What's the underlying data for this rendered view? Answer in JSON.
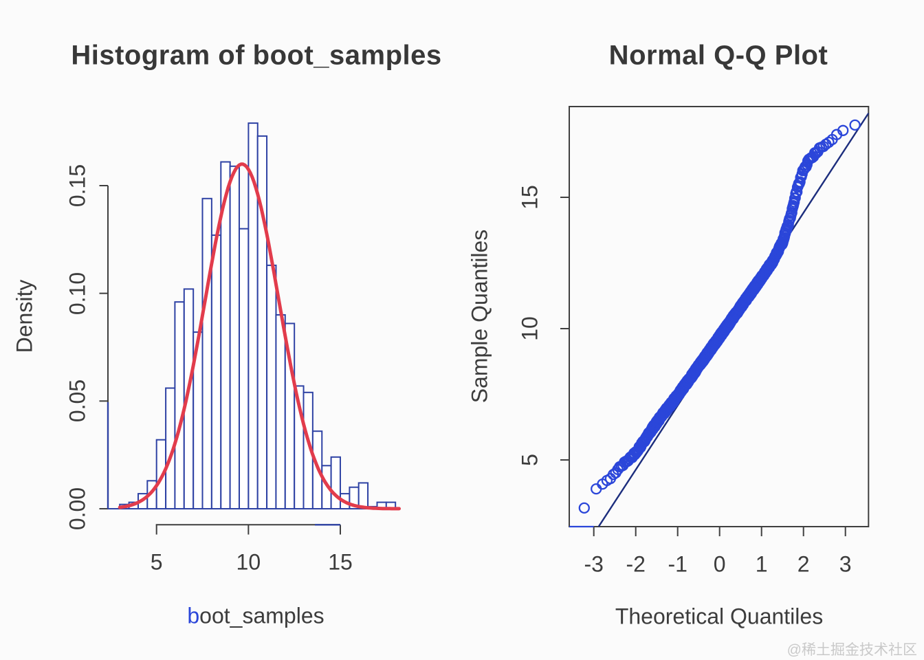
{
  "page": {
    "background": "#fbfbfb",
    "watermark": "@稀土掘金技术社区",
    "text_color": "#3a3a3a",
    "axis_color": "#3f3f3f"
  },
  "chart_data": [
    {
      "type": "bar",
      "subtype": "histogram-with-normal-curve",
      "title": "Histogram of boot_samples",
      "xlabel": "boot_samples",
      "xlabel_first": "b",
      "xlabel_rest": "oot_samples",
      "xlabel_first_color": "#2b46d9",
      "ylabel": "Density",
      "bin_start": 3.0,
      "bin_width": 0.5,
      "densities": [
        0.002,
        0.003,
        0.007,
        0.013,
        0.032,
        0.056,
        0.096,
        0.102,
        0.082,
        0.144,
        0.127,
        0.161,
        0.159,
        0.13,
        0.179,
        0.173,
        0.113,
        0.09,
        0.086,
        0.057,
        0.054,
        0.036,
        0.02,
        0.024,
        0.007,
        0.01,
        0.012,
        0.001,
        0.003,
        0.003
      ],
      "x_tick_values": [
        5,
        10,
        15
      ],
      "x_tick_labels": [
        "5",
        "10",
        "15"
      ],
      "y_tick_values": [
        0,
        0.05,
        0.1,
        0.15
      ],
      "y_tick_labels": [
        "0.00",
        "0.05",
        "0.10",
        "0.15"
      ],
      "xlim": [
        2.4,
        18.4
      ],
      "ylim": [
        0,
        0.187
      ],
      "grid": false,
      "bar_fill": "#ffffff",
      "bar_border": "#2e42a4",
      "normal_curve": {
        "amplitude": 0.16,
        "mean": 9.65,
        "sd": 2.0,
        "color": "#e23c4c"
      }
    },
    {
      "type": "scatter",
      "subtype": "normal-qq-plot",
      "title": "Normal Q-Q Plot",
      "xlabel": "Theoretical Quantiles",
      "ylabel": "Sample Quantiles",
      "x_tick_values": [
        -3,
        -2,
        -1,
        0,
        1,
        2,
        3
      ],
      "x_tick_labels": [
        "-3",
        "-2",
        "-1",
        "0",
        "1",
        "2",
        "3"
      ],
      "y_tick_values": [
        5,
        10,
        15
      ],
      "y_tick_labels": [
        "5",
        "10",
        "15"
      ],
      "xlim": [
        -3.59,
        3.55
      ],
      "ylim": [
        2.5,
        18.45
      ],
      "grid": false,
      "n_points": 1000,
      "sample_quantile_curve": [
        [
          -3.15,
          3.82
        ],
        [
          -3.05,
          3.85
        ],
        [
          -2.95,
          3.9
        ],
        [
          -2.85,
          3.95
        ],
        [
          -2.75,
          4.1
        ],
        [
          -2.65,
          4.25
        ],
        [
          -2.55,
          4.42
        ],
        [
          -2.45,
          4.58
        ],
        [
          -2.35,
          4.75
        ],
        [
          -2.25,
          4.9
        ],
        [
          -2.15,
          5.05
        ],
        [
          -2.05,
          5.2
        ],
        [
          -1.9,
          5.5
        ],
        [
          -1.7,
          5.97
        ],
        [
          -1.5,
          6.42
        ],
        [
          -1.3,
          6.85
        ],
        [
          -1.1,
          7.25
        ],
        [
          -0.9,
          7.68
        ],
        [
          -0.7,
          8.12
        ],
        [
          -0.5,
          8.57
        ],
        [
          -0.3,
          9.02
        ],
        [
          -0.1,
          9.47
        ],
        [
          0.1,
          9.92
        ],
        [
          0.3,
          10.37
        ],
        [
          0.5,
          10.82
        ],
        [
          0.7,
          11.27
        ],
        [
          0.9,
          11.72
        ],
        [
          1.1,
          12.17
        ],
        [
          1.3,
          12.65
        ],
        [
          1.5,
          13.3
        ],
        [
          1.7,
          14.3
        ],
        [
          1.85,
          15.3
        ],
        [
          2.0,
          16.05
        ],
        [
          2.15,
          16.45
        ],
        [
          2.3,
          16.7
        ],
        [
          2.5,
          17.0
        ],
        [
          2.7,
          17.25
        ],
        [
          2.9,
          17.45
        ],
        [
          3.1,
          17.62
        ],
        [
          3.3,
          17.8
        ]
      ],
      "outlier_point": [
        -3.29,
        3.17
      ],
      "reference_line": {
        "intercept": 9.52,
        "slope": 2.446,
        "color": "#1c2d7d"
      },
      "point_color": "#2b46d9"
    }
  ]
}
